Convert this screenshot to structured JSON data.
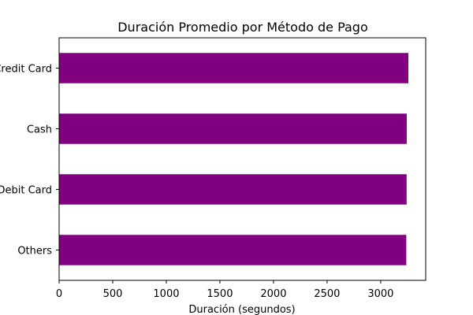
{
  "chart_data": {
    "type": "bar",
    "orientation": "horizontal",
    "title": "Duración Promedio por Método de Pago",
    "xlabel": "Duración (segundos)",
    "ylabel": "",
    "categories": [
      "Credit Card",
      "Cash",
      "Debit Card",
      "Others"
    ],
    "values": [
      3258,
      3243,
      3242,
      3239
    ],
    "xlim": [
      0,
      3420
    ],
    "xticks": [
      0,
      500,
      1000,
      1500,
      2000,
      2500,
      3000
    ],
    "bar_color": "#800080",
    "grid": false,
    "legend": "none"
  }
}
